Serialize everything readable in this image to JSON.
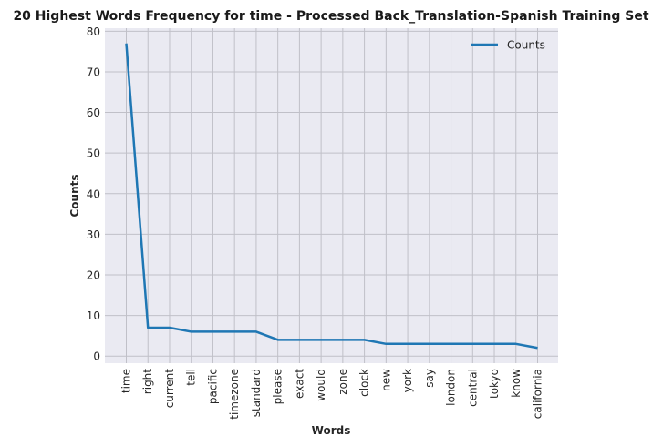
{
  "chart_data": {
    "type": "line",
    "title": "20 Highest Words Frequency for time - Processed Back_Translation-Spanish Training Set",
    "xlabel": "Words",
    "ylabel": "Counts",
    "categories": [
      "time",
      "right",
      "current",
      "tell",
      "pacific",
      "timezone",
      "standard",
      "please",
      "exact",
      "would",
      "zone",
      "clock",
      "new",
      "york",
      "say",
      "london",
      "central",
      "tokyo",
      "know",
      "california"
    ],
    "series": [
      {
        "name": "Counts",
        "values": [
          77,
          7,
          7,
          6,
          6,
          6,
          6,
          4,
          4,
          4,
          4,
          4,
          3,
          3,
          3,
          3,
          3,
          3,
          3,
          2
        ]
      }
    ],
    "ylim": [
      -1.75,
      80.75
    ],
    "yticks": [
      0,
      10,
      20,
      30,
      40,
      50,
      60,
      70,
      80
    ],
    "grid": true,
    "legend_position": "upper right",
    "colors": {
      "line": "#1f77b4",
      "plot_bg": "#eaeaf2",
      "grid": "#c0c0c8"
    }
  }
}
